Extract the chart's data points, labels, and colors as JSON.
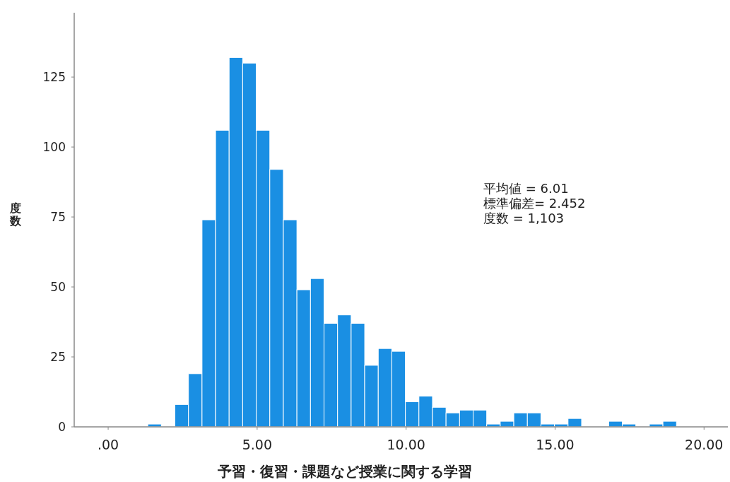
{
  "chart_data": {
    "type": "histogram",
    "xlabel": "予習・復習・課題など授業に関する学習",
    "ylabel": "度数",
    "annotations": [
      "平均値 = 6.01",
      "標準偏差= 2.452",
      "度数 = 1,103"
    ],
    "bins": [
      1.33,
      1.785,
      2.24,
      2.695,
      3.15,
      3.605,
      4.06,
      4.515,
      4.97,
      5.425,
      5.88,
      6.335,
      6.79,
      7.245,
      7.7,
      8.155,
      8.61,
      9.065,
      9.52,
      9.975,
      10.43,
      10.885,
      11.34,
      11.795,
      12.25,
      12.705,
      13.16,
      13.615,
      14.07,
      14.525,
      14.98,
      15.435,
      15.89,
      16.345,
      16.8,
      17.255,
      17.71,
      18.165,
      18.62,
      19.075
    ],
    "values": [
      1,
      0,
      8,
      19,
      74,
      106,
      132,
      130,
      106,
      92,
      74,
      49,
      53,
      37,
      40,
      37,
      22,
      28,
      27,
      9,
      11,
      7,
      5,
      6,
      6,
      1,
      2,
      5,
      5,
      1,
      1,
      3,
      0,
      0,
      2,
      1,
      0,
      1,
      2
    ],
    "color": "#1a8fe3",
    "xlim": [
      -1.14,
      20.8
    ],
    "ylim": [
      0,
      148
    ],
    "xticks": [
      {
        "value": 0,
        "label": ".00"
      },
      {
        "value": 5,
        "label": "5.00"
      },
      {
        "value": 10,
        "label": "10.00"
      },
      {
        "value": 15,
        "label": "15.00"
      },
      {
        "value": 20,
        "label": "20.00"
      }
    ],
    "yticks": [
      0,
      25,
      50,
      75,
      100,
      125
    ],
    "grid": false
  }
}
